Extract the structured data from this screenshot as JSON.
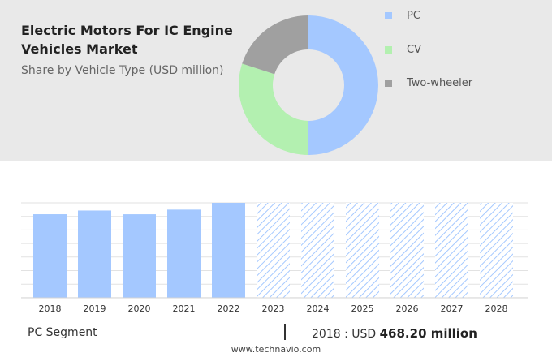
{
  "header": {
    "title": "Electric Motors For IC Engine Vehicles Market",
    "subtitle": "Share by Vehicle Type (USD million)"
  },
  "chart_data": [
    {
      "type": "pie",
      "donut": true,
      "labels": [
        "PC",
        "CV",
        "Two-wheeler"
      ],
      "values": [
        50,
        30,
        20
      ],
      "colors": [
        "#a4c8ff",
        "#b3f0b0",
        "#a0a0a0"
      ],
      "legend_position": "right"
    },
    {
      "type": "bar",
      "categories": [
        "2018",
        "2019",
        "2020",
        "2021",
        "2022",
        "2023",
        "2024",
        "2025",
        "2026",
        "2027",
        "2028"
      ],
      "values": [
        468.2,
        489,
        468,
        494,
        532,
        532,
        532,
        532,
        532,
        532,
        532
      ],
      "forecast_from": "2023",
      "bar_color": "#a4c8ff",
      "forecast_style": "hatched",
      "grid": true,
      "ylim": [
        0,
        532
      ]
    }
  ],
  "footer": {
    "segment_label": "PC Segment",
    "value_prefix": "2018 : USD",
    "value_bold": "468.20 million",
    "source": "www.technavio.com"
  }
}
